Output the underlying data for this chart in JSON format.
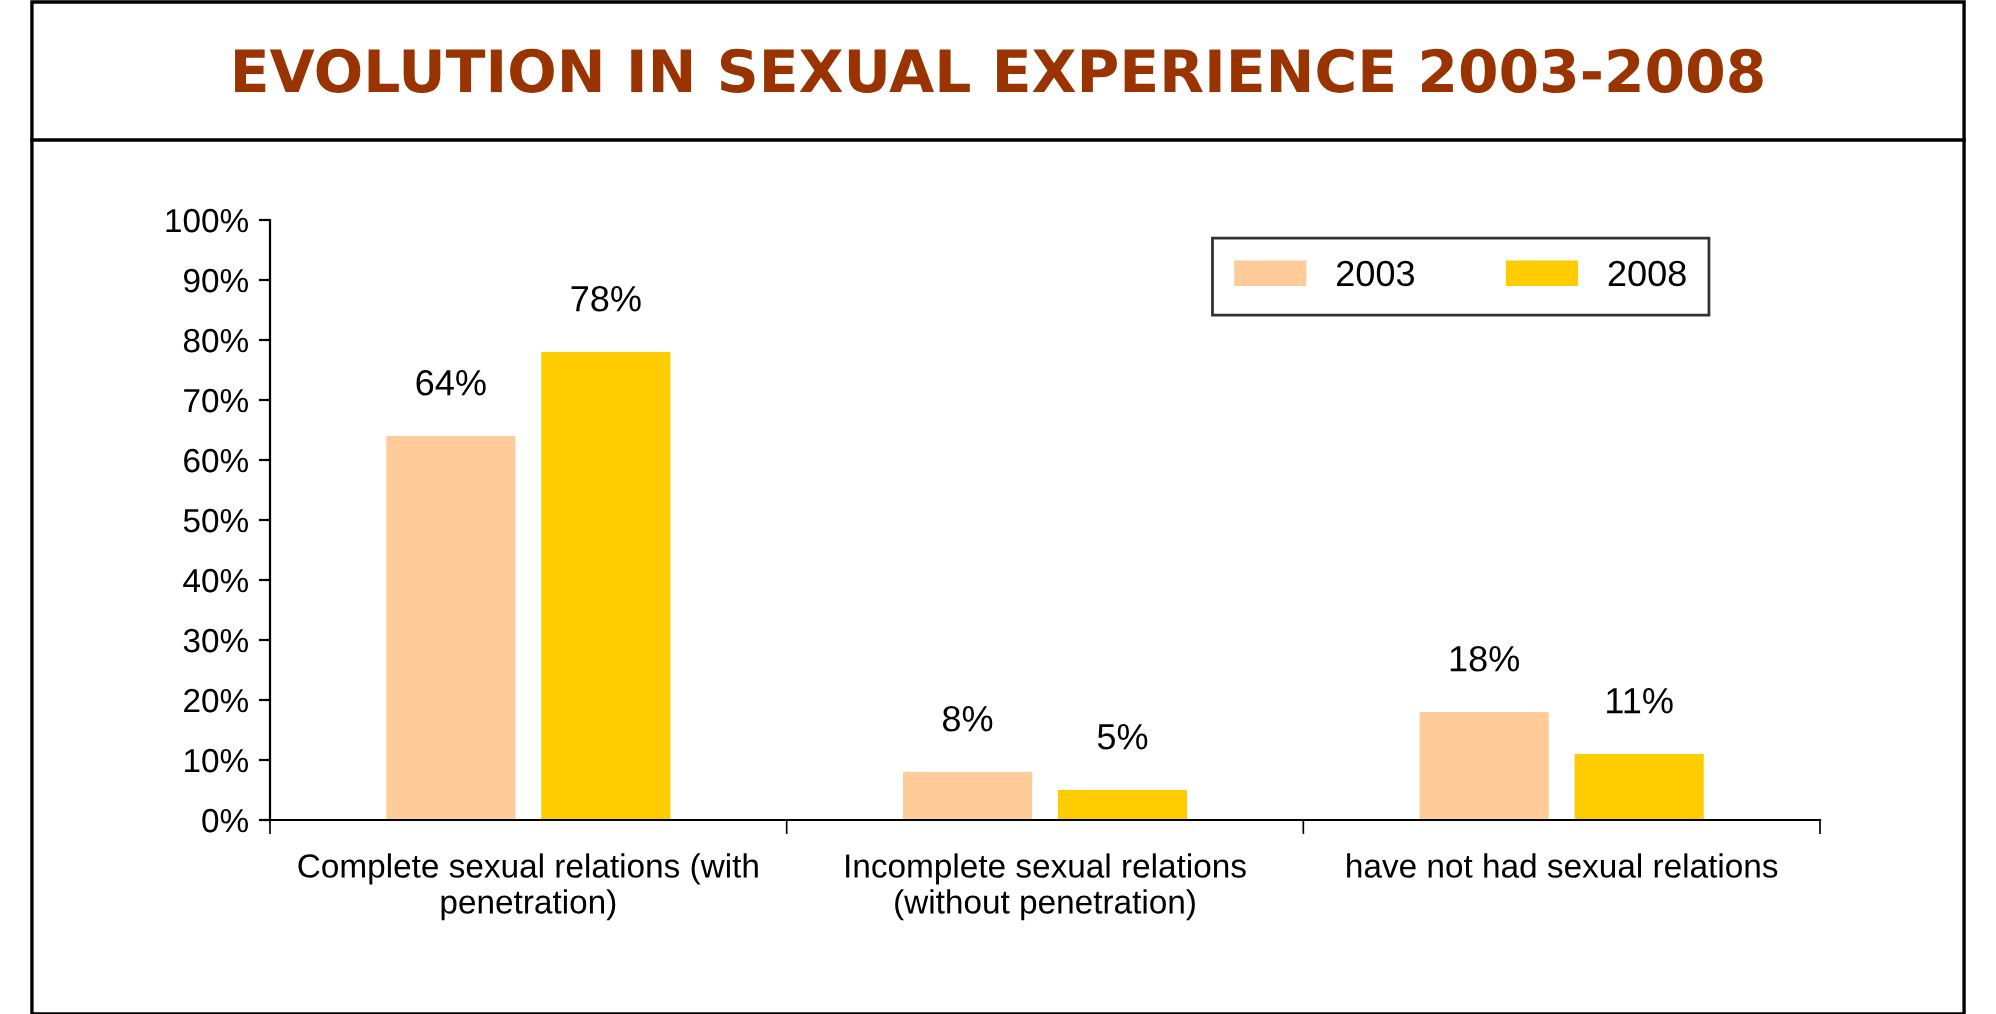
{
  "chart_data": {
    "type": "bar",
    "title": "EVOLUTION IN SEXUAL EXPERIENCE 2003-2008",
    "categories": [
      "Complete sexual relations (with\npenetration)",
      "Incomplete sexual relations\n(without penetration)",
      "have not had sexual relations"
    ],
    "series": [
      {
        "name": "2003",
        "color": "#ffcc99",
        "values": [
          64,
          8,
          18
        ],
        "value_labels": [
          "64%",
          "8%",
          "18%"
        ]
      },
      {
        "name": "2008",
        "color": "#ffcc00",
        "values": [
          78,
          5,
          11
        ],
        "value_labels": [
          "78%",
          "5%",
          "11%"
        ]
      }
    ],
    "ylim": [
      0,
      100
    ],
    "yticks": [
      {
        "value": 0,
        "label": "0%"
      },
      {
        "value": 10,
        "label": "10%"
      },
      {
        "value": 20,
        "label": "20%"
      },
      {
        "value": 30,
        "label": "30%"
      },
      {
        "value": 40,
        "label": "40%"
      },
      {
        "value": 50,
        "label": "50%"
      },
      {
        "value": 60,
        "label": "60%"
      },
      {
        "value": 70,
        "label": "70%"
      },
      {
        "value": 80,
        "label": "80%"
      },
      {
        "value": 90,
        "label": "90%"
      },
      {
        "value": 100,
        "label": "100%"
      }
    ],
    "grid": false,
    "legend": "top right"
  }
}
